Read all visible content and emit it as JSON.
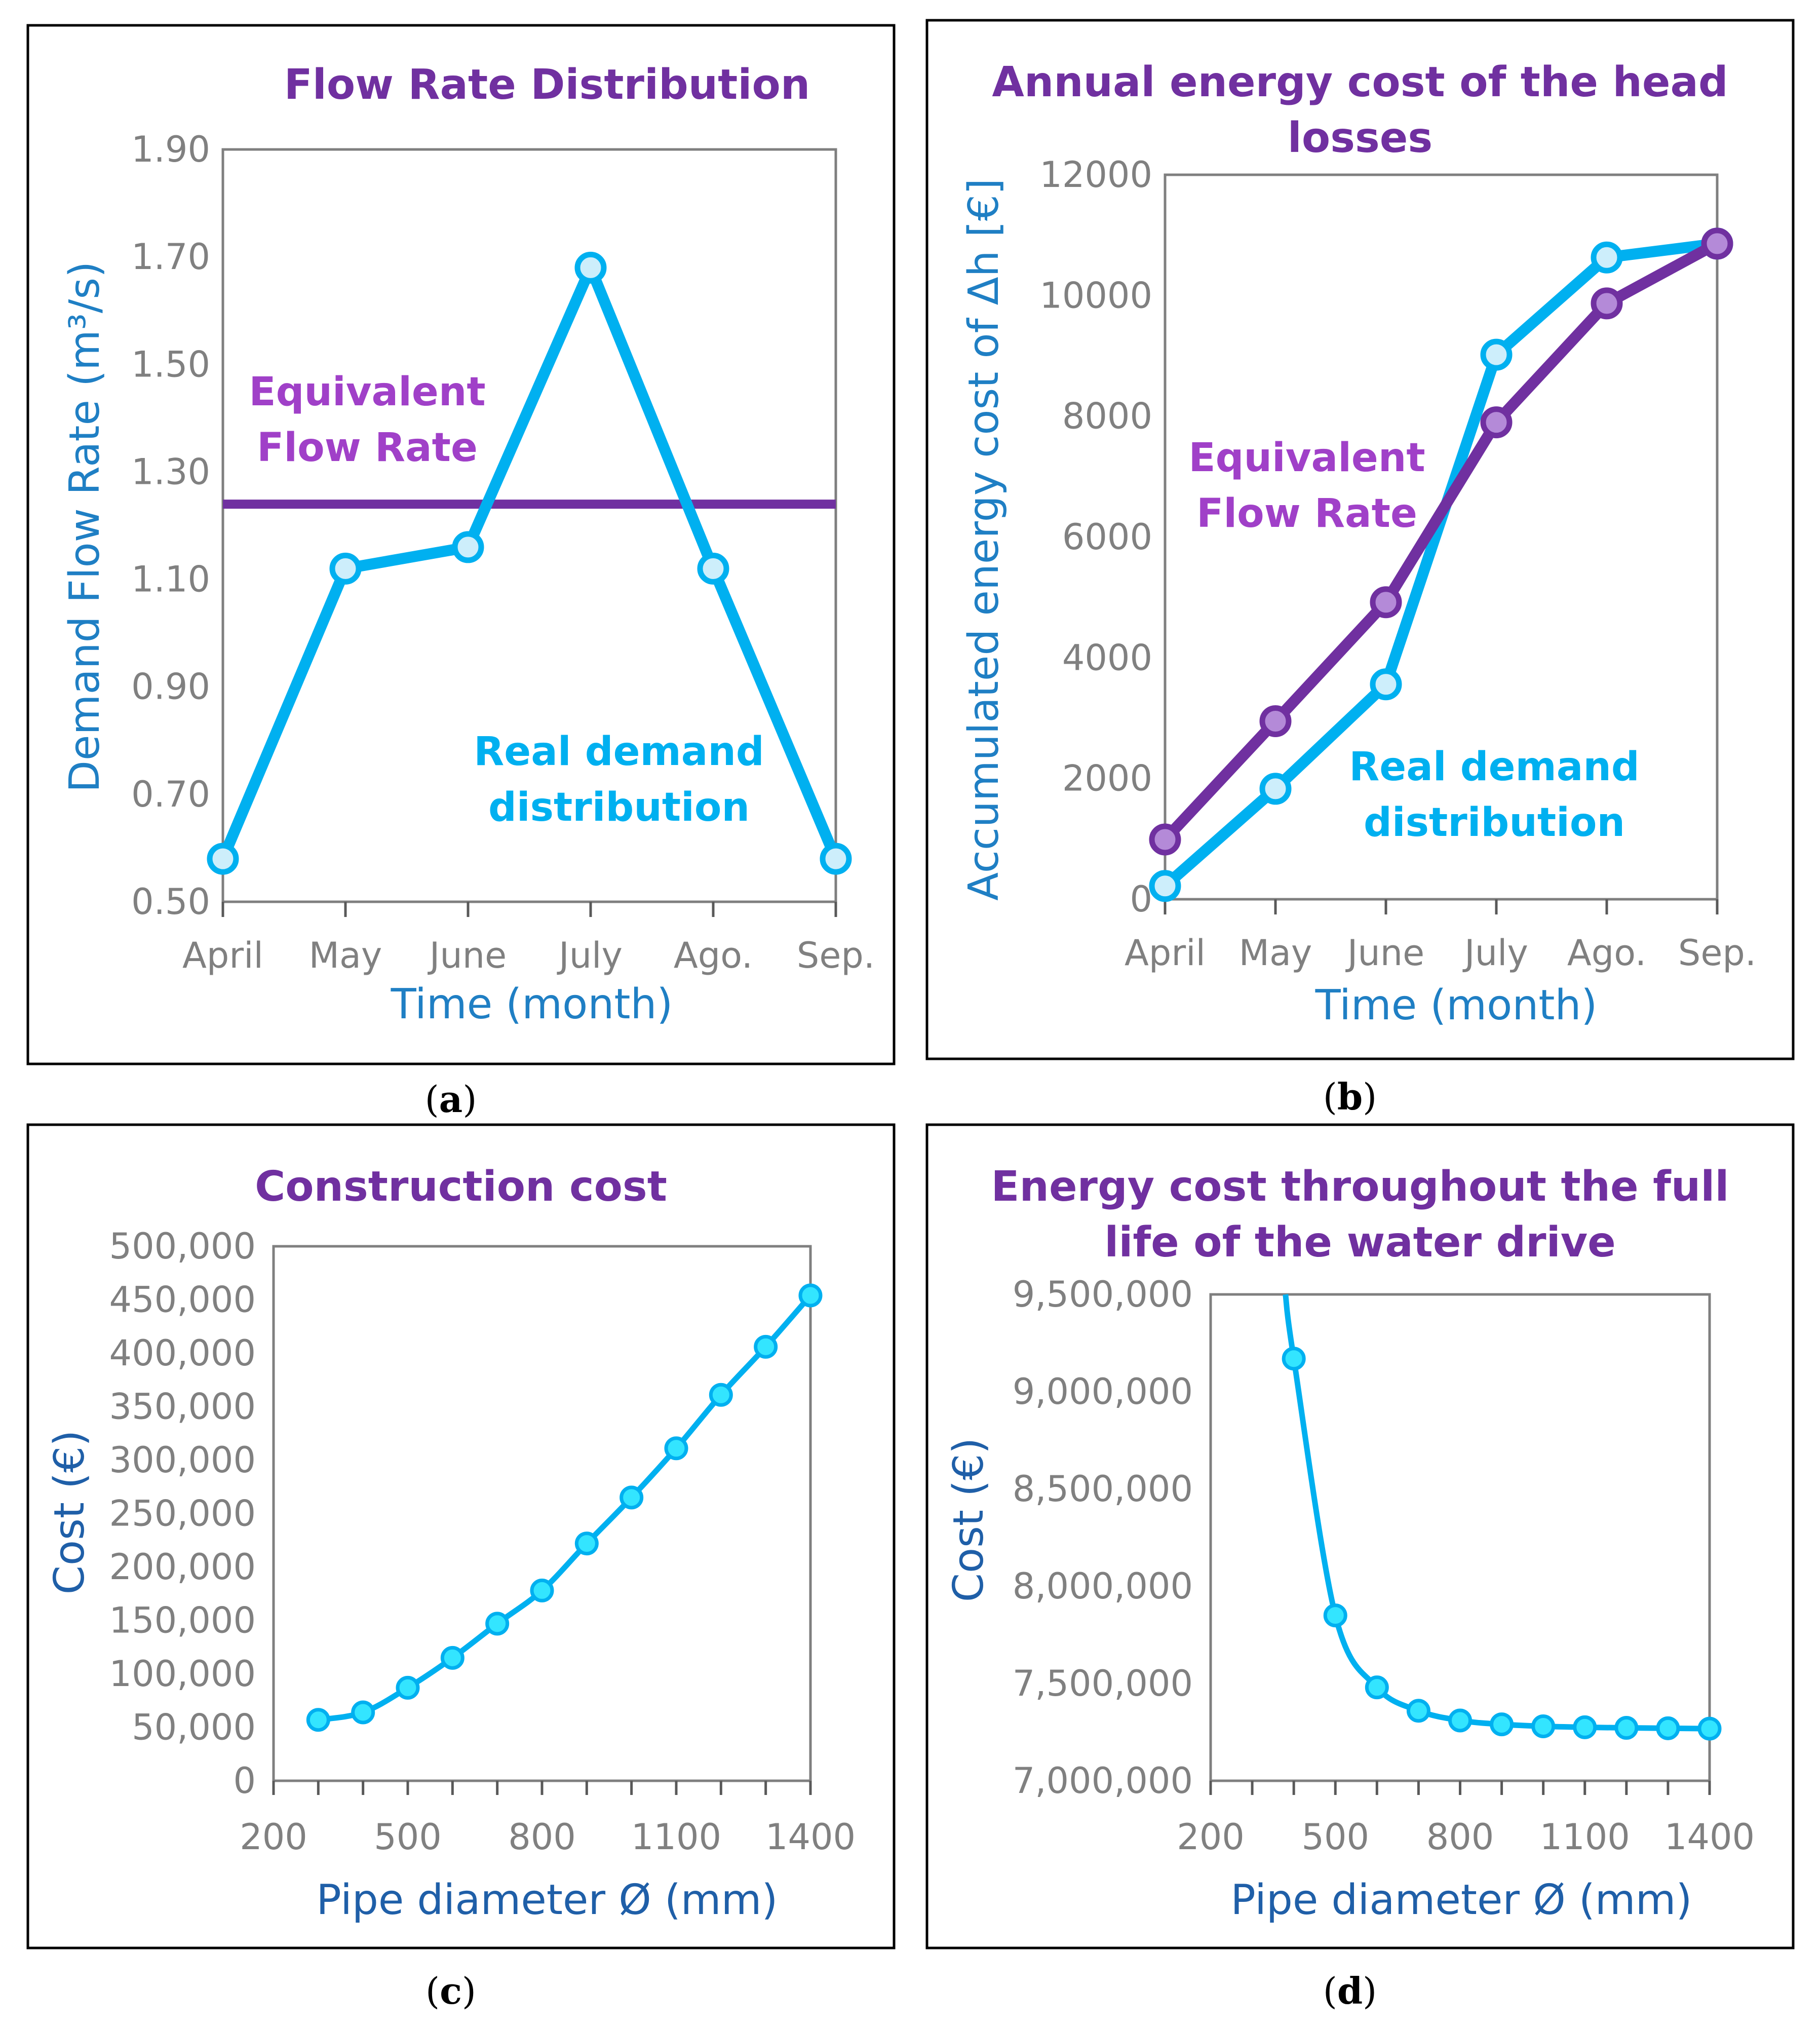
{
  "colors": {
    "real": "#00b0f0",
    "real_marker_fill": "#cdeefb",
    "equivalent": "#7030a0",
    "equivalent_marker_fill": "#b48ad8",
    "cost_line": "#00b0f0",
    "cost_marker_fill": "#33e5ff",
    "title": "#7030a0",
    "axis_title": "#1f7fc4"
  },
  "chart_data": [
    {
      "panel": "a",
      "caption": "a",
      "type": "line",
      "title": "Flow Rate Distribution",
      "xlabel": "Time (month)",
      "ylabel": "Demand Flow Rate (m³/s)",
      "categories": [
        "April",
        "May",
        "June",
        "July",
        "Ago.",
        "Sep."
      ],
      "ylim": [
        0.5,
        1.9
      ],
      "yticks": [
        "0.50",
        "0.70",
        "0.90",
        "1.10",
        "1.30",
        "1.50",
        "1.70",
        "1.90"
      ],
      "series": [
        {
          "name": "Real demand distribution",
          "values": [
            0.58,
            1.12,
            1.16,
            1.68,
            1.12,
            0.58
          ]
        },
        {
          "name": "Equivalent Flow Rate",
          "values": [
            1.24,
            1.24,
            1.24,
            1.24,
            1.24,
            1.24
          ]
        }
      ],
      "annotations": {
        "equivalent": [
          "Equivalent",
          "Flow Rate"
        ],
        "real": [
          "Real demand",
          "distribution"
        ]
      }
    },
    {
      "panel": "b",
      "caption": "b",
      "type": "line",
      "title": [
        "Annual energy cost of the head",
        "losses"
      ],
      "xlabel": "Time (month)",
      "ylabel": "Accumulated energy cost of Δh [€]",
      "categories": [
        "April",
        "May",
        "June",
        "July",
        "Ago.",
        "Sep."
      ],
      "ylim": [
        0,
        12000
      ],
      "yticks": [
        "0",
        "2000",
        "4000",
        "6000",
        "8000",
        "10000",
        "12000"
      ],
      "series": [
        {
          "name": "Real demand distribution",
          "values": [
            220,
            1830,
            3560,
            9020,
            10630,
            10860
          ]
        },
        {
          "name": "Equivalent Flow Rate",
          "values": [
            990,
            2950,
            4920,
            7900,
            9870,
            10860
          ]
        }
      ],
      "annotations": {
        "equivalent": [
          "Equivalent",
          "Flow Rate"
        ],
        "real": [
          "Real demand",
          "distribution"
        ]
      }
    },
    {
      "panel": "c",
      "caption": "c",
      "type": "scatter",
      "title": "Construction cost",
      "xlabel": "Pipe diameter Ø (mm)",
      "ylabel": "Cost (€)",
      "xlim": [
        200,
        1400
      ],
      "xticks": [
        "200",
        "500",
        "800",
        "1100",
        "1400"
      ],
      "ylim": [
        0,
        500000
      ],
      "yticks": [
        "0",
        "50,000",
        "100,000",
        "150,000",
        "200,000",
        "250,000",
        "300,000",
        "350,000",
        "400,000",
        "450,000",
        "500,000"
      ],
      "x": [
        300,
        400,
        500,
        600,
        700,
        800,
        900,
        1000,
        1100,
        1200,
        1300,
        1400
      ],
      "y": [
        57000,
        64000,
        87000,
        115000,
        147000,
        178000,
        222000,
        265000,
        311000,
        361000,
        406000,
        454000
      ]
    },
    {
      "panel": "d",
      "caption": "d",
      "type": "scatter",
      "title": [
        "Energy cost throughout the full",
        "life of the water drive"
      ],
      "xlabel": "Pipe diameter Ø (mm)",
      "ylabel": "Cost (€)",
      "xlim": [
        200,
        1400
      ],
      "xticks": [
        "200",
        "500",
        "800",
        "1100",
        "1400"
      ],
      "ylim": [
        7000000,
        9500000
      ],
      "yticks": [
        "7,000,000",
        "7,500,000",
        "8,000,000",
        "8,500,000",
        "9,000,000",
        "9,500,000"
      ],
      "x": [
        400,
        500,
        600,
        700,
        800,
        900,
        1000,
        1100,
        1200,
        1300,
        1400
      ],
      "y": [
        9170000,
        7850000,
        7480000,
        7360000,
        7310000,
        7290000,
        7280000,
        7275000,
        7272000,
        7270000,
        7268000
      ]
    }
  ]
}
